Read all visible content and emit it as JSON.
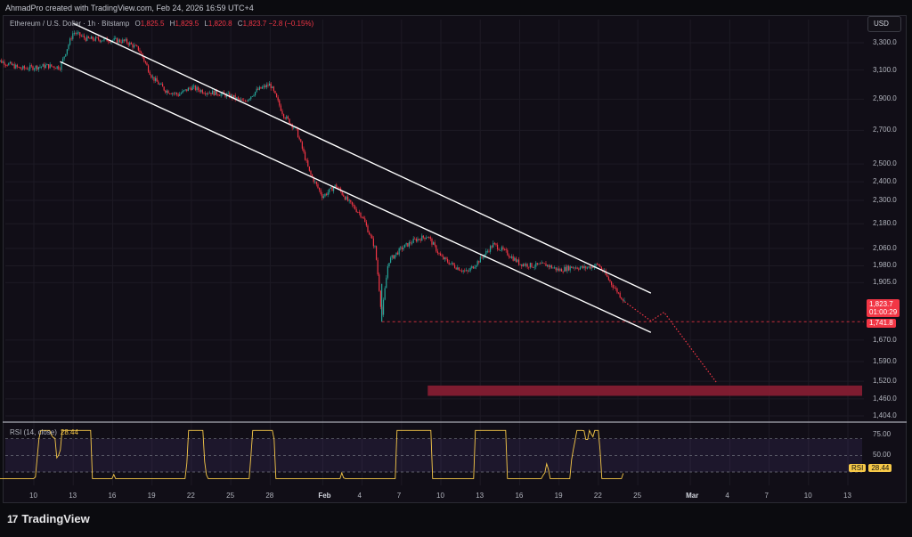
{
  "header": {
    "credit": "AhmadPro created with TradingView.com, Feb 24, 2026 16:59 UTC+4"
  },
  "legend": {
    "symbol": "Ethereum / U.S. Dollar · 1h · Bitstamp",
    "o_label": "O",
    "o": "1,825.5",
    "h_label": "H",
    "h": "1,829.5",
    "l_label": "L",
    "l": "1,820.8",
    "c_label": "C",
    "c": "1,823.7",
    "change": "−2.8 (−0.15%)"
  },
  "currency_button": "USD",
  "price_tag": {
    "price": "1,823.7",
    "countdown": "01:00:29"
  },
  "level_tag": "1,741.8",
  "rsi": {
    "title": "RSI (14, close)",
    "value": "28.44",
    "badge": "RSI"
  },
  "footer": {
    "logo_glyph": "17",
    "brand": "TradingView"
  },
  "colors": {
    "up": "#26a69a",
    "down": "#f23645",
    "rsi": "#f7c948",
    "zone": "#8b1e33",
    "channel": "#ffffff"
  },
  "chart_data": [
    {
      "type": "candlestick",
      "title": "Ethereum / U.S. Dollar · 1h · Bitstamp",
      "scale": "log",
      "y_ticks": [
        "3,300.0",
        "3,100.0",
        "2,900.0",
        "2,700.0",
        "2,500.0",
        "2,400.0",
        "2,300.0",
        "2,180.0",
        "2,060.0",
        "1,980.0",
        "1,905.0",
        "1,670.0",
        "1,590.0",
        "1,520.0",
        "1,460.0",
        "1,404.0"
      ],
      "x_ticks": [
        "10",
        "13",
        "16",
        "19",
        "22",
        "25",
        "28",
        "Feb",
        "4",
        "7",
        "10",
        "13",
        "16",
        "19",
        "22",
        "25",
        "Mar",
        "4",
        "7",
        "10",
        "13"
      ],
      "x_range": [
        "Jan 7",
        "Mar 15"
      ],
      "y_range": [
        1380,
        3480
      ],
      "price_path": [
        [
          "Jan 7",
          3180
        ],
        [
          "Jan 9",
          3110
        ],
        [
          "Jan 11",
          3130
        ],
        [
          "Jan 12",
          3120
        ],
        [
          "Jan 13",
          3380
        ],
        [
          "Jan 14",
          3330
        ],
        [
          "Jan 16",
          3320
        ],
        [
          "Jan 17",
          3310
        ],
        [
          "Jan 18",
          3250
        ],
        [
          "Jan 19",
          3050
        ],
        [
          "Jan 20",
          2960
        ],
        [
          "Jan 21",
          2930
        ],
        [
          "Jan 22",
          2980
        ],
        [
          "Jan 23",
          2950
        ],
        [
          "Jan 24",
          2940
        ],
        [
          "Jan 25",
          2920
        ],
        [
          "Jan 26",
          2880
        ],
        [
          "Jan 27",
          2960
        ],
        [
          "Jan 28",
          3000
        ],
        [
          "Jan 29",
          2800
        ],
        [
          "Jan 30",
          2700
        ],
        [
          "Jan 31",
          2450
        ],
        [
          "Feb 1",
          2320
        ],
        [
          "Feb 2",
          2380
        ],
        [
          "Feb 3",
          2290
        ],
        [
          "Feb 4",
          2220
        ],
        [
          "Feb 5",
          2060
        ],
        [
          "Feb 5.5",
          1760
        ],
        [
          "Feb 6",
          2000
        ],
        [
          "Feb 7",
          2060
        ],
        [
          "Feb 8",
          2100
        ],
        [
          "Feb 9",
          2120
        ],
        [
          "Feb 10",
          2020
        ],
        [
          "Feb 11",
          1980
        ],
        [
          "Feb 12",
          1950
        ],
        [
          "Feb 13",
          2010
        ],
        [
          "Feb 14",
          2080
        ],
        [
          "Feb 15",
          2040
        ],
        [
          "Feb 16",
          1990
        ],
        [
          "Feb 17",
          1980
        ],
        [
          "Feb 18",
          1985
        ],
        [
          "Feb 19",
          1960
        ],
        [
          "Feb 20",
          1975
        ],
        [
          "Feb 21",
          1970
        ],
        [
          "Feb 22",
          1985
        ],
        [
          "Feb 23",
          1900
        ],
        [
          "Feb 24",
          1823.7
        ]
      ],
      "annotations": {
        "channel_upper": [
          [
            "Jan 13",
            3450
          ],
          [
            "Feb 26",
            1860
          ]
        ],
        "channel_lower": [
          [
            "Jan 12",
            3160
          ],
          [
            "Feb 26",
            1700
          ]
        ],
        "projection": [
          [
            "Feb 24",
            1823.7
          ],
          [
            "Feb 26",
            1745
          ],
          [
            "Feb 27",
            1780
          ],
          [
            "Mar 3",
            1515
          ]
        ],
        "support_level": 1741.8,
        "target_zone": [
          1470,
          1505
        ],
        "zone_start": "Feb 9"
      }
    },
    {
      "type": "line",
      "title": "RSI (14, close)",
      "y_ticks": [
        "75.00",
        "50.00"
      ],
      "bands": [
        30,
        70
      ],
      "last_value": 28.44
    }
  ]
}
